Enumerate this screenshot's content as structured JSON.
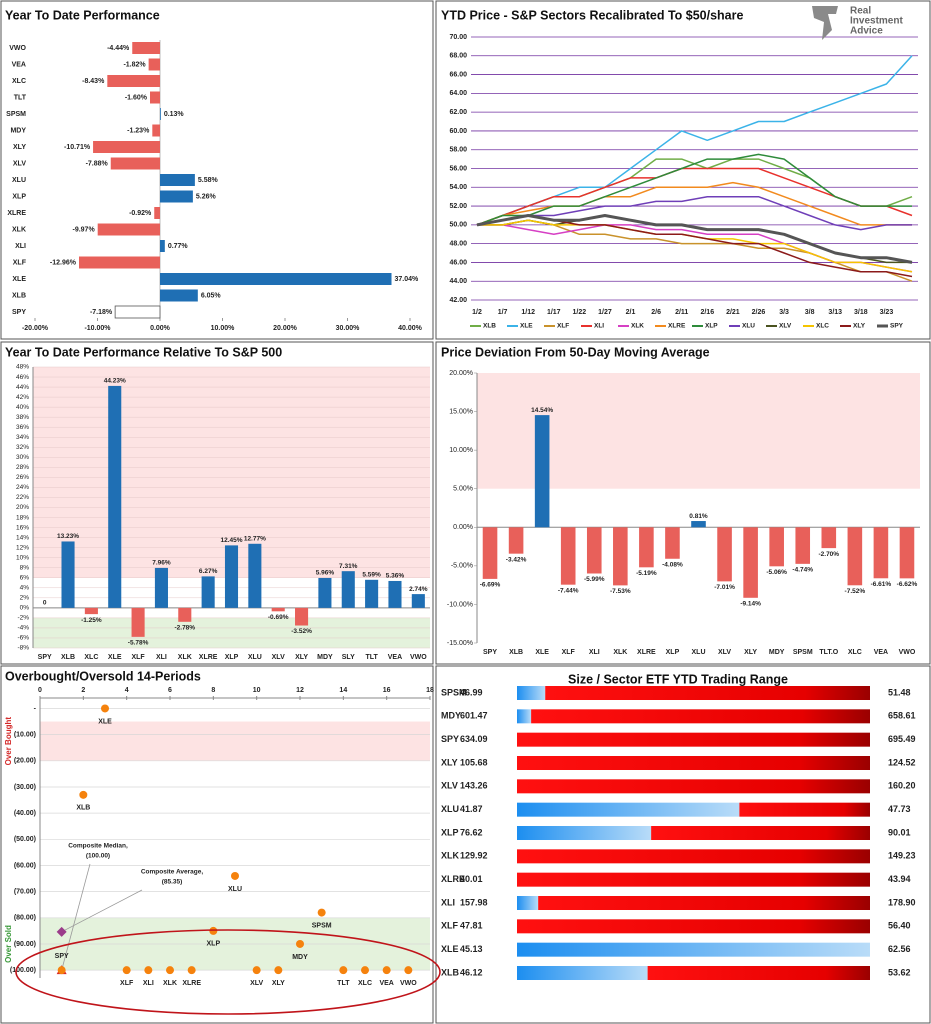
{
  "chart_data": [
    {
      "type": "hbar",
      "title": "Year To Date Performance",
      "categories": [
        "VWO",
        "VEA",
        "XLC",
        "TLT",
        "SPSM",
        "MDY",
        "XLY",
        "XLV",
        "XLU",
        "XLP",
        "XLRE",
        "XLK",
        "XLI",
        "XLF",
        "XLE",
        "XLB",
        "SPY"
      ],
      "values": [
        -4.44,
        -1.82,
        -8.43,
        -1.6,
        0.13,
        -1.23,
        -10.71,
        -7.88,
        5.58,
        5.26,
        -0.92,
        -9.97,
        0.77,
        -12.96,
        37.04,
        6.05,
        -7.18
      ],
      "value_labels": [
        "-4.44%",
        "-1.82%",
        "-8.43%",
        "-1.60%",
        "0.13%",
        "-1.23%",
        "-10.71%",
        "-7.88%",
        "5.58%",
        "5.26%",
        "-0.92%",
        "-9.97%",
        "0.77%",
        "-12.96%",
        "37.04%",
        "6.05%",
        "-7.18%"
      ],
      "xlim": [
        -20,
        40
      ],
      "xticks": [
        {
          "value": -20,
          "label": "-20.00%"
        },
        {
          "value": -10,
          "label": "-10.00%"
        },
        {
          "value": 0,
          "label": "0.00%"
        },
        {
          "value": 10,
          "label": "10.00%"
        },
        {
          "value": 20,
          "label": "20.00%"
        },
        {
          "value": 30,
          "label": "30.00%"
        },
        {
          "value": 40,
          "label": "40.00%"
        }
      ],
      "positive_color": "#1f6fb4",
      "negative_color": "#e8605a",
      "outline_category": "SPY"
    },
    {
      "type": "line",
      "title": "YTD Price - S&P Sectors Recalibrated To $50/share",
      "logo": [
        "Real",
        "Investment",
        "Advice"
      ],
      "x": [
        "1/2",
        "1/7",
        "1/12",
        "1/17",
        "1/22",
        "1/27",
        "2/1",
        "2/6",
        "2/11",
        "2/16",
        "2/21",
        "2/26",
        "3/3",
        "3/8",
        "3/13",
        "3/18",
        "3/23",
        null
      ],
      "ylim": [
        42,
        70
      ],
      "yticks": [
        {
          "value": 42,
          "label": "42.00"
        },
        {
          "value": 44,
          "label": "44.00"
        },
        {
          "value": 46,
          "label": "46.00"
        },
        {
          "value": 48,
          "label": "48.00"
        },
        {
          "value": 50,
          "label": "50.00"
        },
        {
          "value": 52,
          "label": "52.00"
        },
        {
          "value": 54,
          "label": "54.00"
        },
        {
          "value": 56,
          "label": "56.00"
        },
        {
          "value": 58,
          "label": "58.00"
        },
        {
          "value": 60,
          "label": "60.00"
        },
        {
          "value": 62,
          "label": "62.00"
        },
        {
          "value": 64,
          "label": "64.00"
        },
        {
          "value": 66,
          "label": "66.00"
        },
        {
          "value": 68,
          "label": "68.00"
        },
        {
          "value": 70,
          "label": "70.00"
        }
      ],
      "grid": true,
      "grid_color": "#7030a0",
      "series": [
        {
          "name": "XLB",
          "color": "#70ad47",
          "values": [
            50,
            51,
            52,
            53,
            53,
            54,
            55,
            57,
            57,
            56,
            57,
            57,
            56,
            55,
            53,
            52,
            52,
            53
          ]
        },
        {
          "name": "XLE",
          "color": "#3bb3e8",
          "values": [
            50,
            51,
            52,
            53,
            54,
            54,
            56,
            58,
            60,
            59,
            60,
            61,
            61,
            62,
            63,
            64,
            65,
            68
          ]
        },
        {
          "name": "XLF",
          "color": "#c9922b",
          "values": [
            50,
            50,
            50.5,
            50,
            49,
            49,
            48.5,
            48.5,
            48,
            48,
            48,
            47.5,
            47.5,
            47,
            46,
            45,
            45,
            44
          ]
        },
        {
          "name": "XLI",
          "color": "#e8312c",
          "values": [
            50,
            51,
            52,
            53,
            53,
            54,
            55,
            55,
            56,
            56,
            56,
            56,
            55,
            54,
            53,
            52,
            52,
            51
          ]
        },
        {
          "name": "XLK",
          "color": "#d63fc4",
          "values": [
            50,
            50,
            49.5,
            49,
            49.5,
            50,
            50,
            49.5,
            49.5,
            49,
            49,
            49,
            48,
            47,
            46,
            46,
            45.5,
            45
          ]
        },
        {
          "name": "XLRE",
          "color": "#f28a1e",
          "values": [
            50,
            51,
            51.5,
            52,
            52,
            53,
            53,
            54,
            54,
            54,
            54.5,
            54,
            53,
            52,
            51,
            50,
            50,
            50
          ]
        },
        {
          "name": "XLP",
          "color": "#2e8b3a",
          "values": [
            50,
            51,
            51,
            52,
            52,
            53,
            54,
            55,
            56,
            57,
            57,
            57.5,
            57,
            55,
            53,
            52,
            52,
            52
          ]
        },
        {
          "name": "XLU",
          "color": "#6f3fb8",
          "values": [
            50,
            50.5,
            51,
            51,
            51.5,
            52,
            52,
            52.5,
            52.5,
            53,
            53,
            53,
            52,
            51,
            50,
            49.5,
            50,
            50
          ]
        },
        {
          "name": "XLV",
          "color": "#4b5320",
          "values": [
            50,
            50,
            50.5,
            50,
            50.5,
            51,
            50.5,
            50,
            50,
            49.5,
            49.5,
            49.5,
            49,
            48,
            47,
            46.5,
            46,
            46
          ]
        },
        {
          "name": "XLC",
          "color": "#f5c400",
          "values": [
            50,
            50,
            50.5,
            50,
            50,
            50,
            49.5,
            49,
            49,
            48.5,
            48.5,
            48,
            48,
            47,
            46,
            46,
            45.5,
            45
          ]
        },
        {
          "name": "XLY",
          "color": "#8b1a1a",
          "values": [
            50,
            50.5,
            51,
            50.5,
            50,
            50,
            49.5,
            49,
            49,
            48.5,
            48,
            48,
            47,
            46,
            45.5,
            45,
            45,
            44.5
          ]
        },
        {
          "name": "SPY",
          "color": "#555555",
          "values": [
            50,
            50.5,
            51,
            50.5,
            50.5,
            51,
            50.5,
            50,
            50,
            49.5,
            49.5,
            49.5,
            49,
            48,
            47,
            46.5,
            46.5,
            46
          ]
        }
      ]
    },
    {
      "type": "bar",
      "title": "Year To Date Performance Relative To S&P 500",
      "categories": [
        "SPY",
        "XLB",
        "XLC",
        "XLE",
        "XLF",
        "XLI",
        "XLK",
        "XLRE",
        "XLP",
        "XLU",
        "XLV",
        "XLY",
        "MDY",
        "SLY",
        "TLT",
        "VEA",
        "VWO"
      ],
      "values": [
        0,
        13.23,
        -1.25,
        44.23,
        -5.78,
        7.96,
        -2.78,
        6.27,
        12.45,
        12.77,
        -0.69,
        -3.52,
        5.96,
        7.31,
        5.59,
        5.36,
        2.74
      ],
      "value_labels": [
        "0",
        "13.23%",
        "-1.25%",
        "44.23%",
        "-5.78%",
        "7.96%",
        "-2.78%",
        "6.27%",
        "12.45%",
        "12.77%",
        "-0.69%",
        "-3.52%",
        "5.96%",
        "7.31%",
        "5.59%",
        "5.36%",
        "2.74%"
      ],
      "ylim": [
        -8,
        48
      ],
      "yticks": [
        {
          "value": -8,
          "label": "-8%"
        },
        {
          "value": -6,
          "label": "-6%"
        },
        {
          "value": -4,
          "label": "-4%"
        },
        {
          "value": -2,
          "label": "-2%"
        },
        {
          "value": 0,
          "label": "0%"
        },
        {
          "value": 2,
          "label": "2%"
        },
        {
          "value": 4,
          "label": "4%"
        },
        {
          "value": 6,
          "label": "6%"
        },
        {
          "value": 8,
          "label": "8%"
        },
        {
          "value": 10,
          "label": "10%"
        },
        {
          "value": 12,
          "label": "12%"
        },
        {
          "value": 14,
          "label": "14%"
        },
        {
          "value": 16,
          "label": "16%"
        },
        {
          "value": 18,
          "label": "18%"
        },
        {
          "value": 20,
          "label": "20%"
        },
        {
          "value": 22,
          "label": "22%"
        },
        {
          "value": 24,
          "label": "24%"
        },
        {
          "value": 26,
          "label": "26%"
        },
        {
          "value": 28,
          "label": "28%"
        },
        {
          "value": 30,
          "label": "30%"
        },
        {
          "value": 32,
          "label": "32%"
        },
        {
          "value": 34,
          "label": "34%"
        },
        {
          "value": 36,
          "label": "36%"
        },
        {
          "value": 38,
          "label": "38%"
        },
        {
          "value": 40,
          "label": "40%"
        },
        {
          "value": 42,
          "label": "42%"
        },
        {
          "value": 44,
          "label": "44%"
        },
        {
          "value": 46,
          "label": "46%"
        },
        {
          "value": 48,
          "label": "48%"
        }
      ],
      "grid": true,
      "positive_color": "#1f6fb4",
      "negative_color": "#e8605a",
      "bands": [
        {
          "from": 6,
          "to": 48,
          "color": "#fde3e3"
        },
        {
          "from": -8,
          "to": -2,
          "color": "#e4f2dc"
        }
      ]
    },
    {
      "type": "bar",
      "title": "Price Deviation From 50-Day Moving Average",
      "categories": [
        "SPY",
        "XLB",
        "XLE",
        "XLF",
        "XLI",
        "XLK",
        "XLRE",
        "XLP",
        "XLU",
        "XLV",
        "XLY",
        "MDY",
        "SPSM",
        "TLT.O",
        "XLC",
        "VEA",
        "VWO"
      ],
      "values": [
        -6.69,
        -3.42,
        14.54,
        -7.44,
        -5.99,
        -7.53,
        -5.19,
        -4.08,
        0.81,
        -7.01,
        -9.14,
        -5.06,
        -4.74,
        -2.7,
        -7.52,
        -6.61,
        -6.62
      ],
      "value_labels": [
        "-6.69%",
        "-3.42%",
        "14.54%",
        "-7.44%",
        "-5.99%",
        "-7.53%",
        "-5.19%",
        "-4.08%",
        "0.81%",
        "-7.01%",
        "-9.14%",
        "-5.06%",
        "-4.74%",
        "-2.70%",
        "-7.52%",
        "-6.61%",
        "-6.62%"
      ],
      "ylim": [
        -15,
        20
      ],
      "yticks": [
        {
          "value": -15,
          "label": "-15.00%"
        },
        {
          "value": -10,
          "label": "-10.00%"
        },
        {
          "value": -5,
          "label": "-5.00%"
        },
        {
          "value": 0,
          "label": "0.00%"
        },
        {
          "value": 5,
          "label": "5.00%"
        },
        {
          "value": 10,
          "label": "10.00%"
        },
        {
          "value": 15,
          "label": "15.00%"
        },
        {
          "value": 20,
          "label": "20.00%"
        }
      ],
      "grid": false,
      "positive_color": "#1f6fb4",
      "negative_color": "#e8605a",
      "bands": [
        {
          "from": 5,
          "to": 20,
          "color": "#fde3e3"
        }
      ]
    },
    {
      "type": "scatter",
      "title": "Overbought/Oversold 14-Periods",
      "labels": [
        "SPY",
        "XLB",
        "XLE",
        "XLF",
        "XLI",
        "XLK",
        "XLRE",
        "XLP",
        "XLU",
        "XLV",
        "XLY",
        "MDY",
        "SPSM",
        "TLT",
        "XLC",
        "VEA",
        "VWO"
      ],
      "x": [
        1,
        2,
        3,
        4,
        5,
        6,
        7,
        8,
        9,
        10,
        11,
        12,
        13,
        14,
        15,
        16,
        17
      ],
      "values": [
        -100,
        -33,
        0,
        -100,
        -100,
        -100,
        -100,
        -85,
        -64,
        -100,
        -100,
        -90,
        -78,
        -100,
        -100,
        -100,
        -100
      ],
      "color": "#f5820d",
      "xlim": [
        0,
        18
      ],
      "xticks": [
        0,
        2,
        4,
        6,
        8,
        10,
        12,
        14,
        16,
        18
      ],
      "ylim": [
        -103,
        4
      ],
      "yticks": [
        {
          "value": 0,
          "label": "-"
        },
        {
          "value": -10,
          "label": "(10.00)"
        },
        {
          "value": -20,
          "label": "(20.00)"
        },
        {
          "value": -30,
          "label": "(30.00)"
        },
        {
          "value": -40,
          "label": "(40.00)"
        },
        {
          "value": -50,
          "label": "(50.00)"
        },
        {
          "value": -60,
          "label": "(60.00)"
        },
        {
          "value": -70,
          "label": "(70.00)"
        },
        {
          "value": -80,
          "label": "(80.00)"
        },
        {
          "value": -90,
          "label": "(90.00)"
        },
        {
          "value": -100,
          "label": "(100.00)"
        }
      ],
      "bands": [
        {
          "from": -5,
          "to": -20,
          "color": "#fde3e3",
          "label": "Over Bought",
          "label_color": "#d42a2a"
        },
        {
          "from": -80,
          "to": -100,
          "color": "#e4f2dc",
          "label": "Over Sold",
          "label_color": "#3a9a3a"
        }
      ],
      "annotations": [
        {
          "text": [
            "Composite Median,",
            "(100.00)"
          ],
          "x": 1,
          "y": -100,
          "marker": "triangle",
          "color": "#d9262b"
        },
        {
          "text": [
            "Composite Average,",
            "(85.35)"
          ],
          "x": 1,
          "y": -85.35,
          "marker": "diamond",
          "color": "#9b3c8a"
        }
      ]
    },
    {
      "type": "range",
      "title": "Size / Sector ETF YTD Trading Range",
      "categories": [
        "SPSM",
        "MDY",
        "SPY",
        "XLY",
        "XLV",
        "XLU",
        "XLP",
        "XLK",
        "XLRE",
        "XLI",
        "XLF",
        "XLE",
        "XLB"
      ],
      "low": [
        46.99,
        601.47,
        634.09,
        105.68,
        143.26,
        41.87,
        76.62,
        129.92,
        40.01,
        157.98,
        47.81,
        45.13,
        46.12
      ],
      "low_labels": [
        "46.99",
        "601.47",
        "634.09",
        "105.68",
        "143.26",
        "41.87",
        "76.62",
        "129.92",
        "40.01",
        "157.98",
        "47.81",
        "45.13",
        "46.12"
      ],
      "high": [
        51.48,
        658.61,
        695.49,
        124.52,
        160.2,
        47.73,
        90.01,
        149.23,
        43.94,
        178.9,
        56.4,
        62.56,
        53.62
      ],
      "high_labels": [
        "51.48",
        "658.61",
        "695.49",
        "124.52",
        "160.20",
        "47.73",
        "90.01",
        "149.23",
        "43.94",
        "178.90",
        "56.40",
        "62.56",
        "53.62"
      ],
      "position": [
        0.08,
        0.04,
        0,
        0,
        0,
        0.63,
        0.38,
        0,
        0,
        0.06,
        0,
        1,
        0.37
      ]
    }
  ]
}
